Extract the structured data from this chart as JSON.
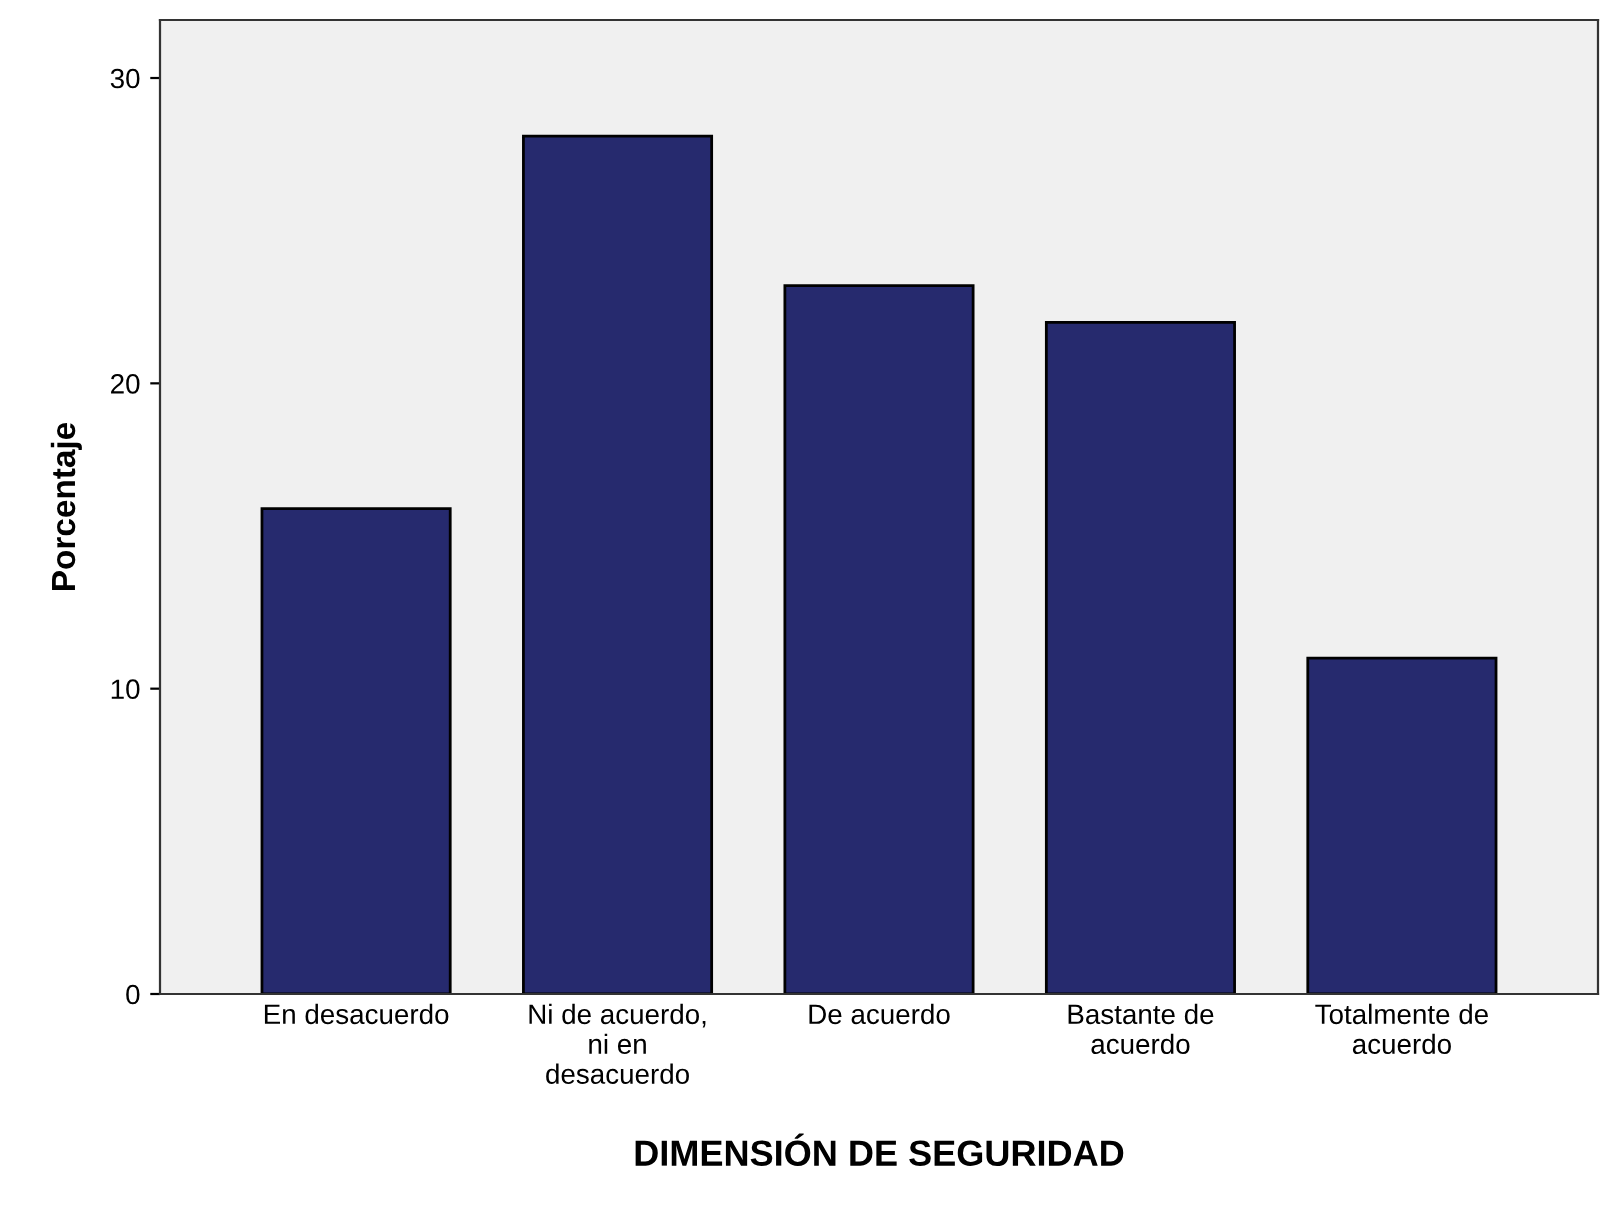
{
  "chart_data": {
    "type": "bar",
    "xlabel": "DIMENSIÓN DE SEGURIDAD",
    "ylabel": "Porcentaje",
    "categories": [
      "En desacuerdo",
      "Ni de acuerdo,\nni en\ndesacuerdo",
      "De acuerdo",
      "Bastante de\nacuerdo",
      "Totalmente de\nacuerdo"
    ],
    "values": [
      15.9,
      28.1,
      23.2,
      22.0,
      11.0
    ],
    "color": "#262a6e",
    "ylim": [
      0,
      31.9
    ],
    "yticks": [
      0,
      10,
      20,
      30
    ],
    "grid": false
  }
}
